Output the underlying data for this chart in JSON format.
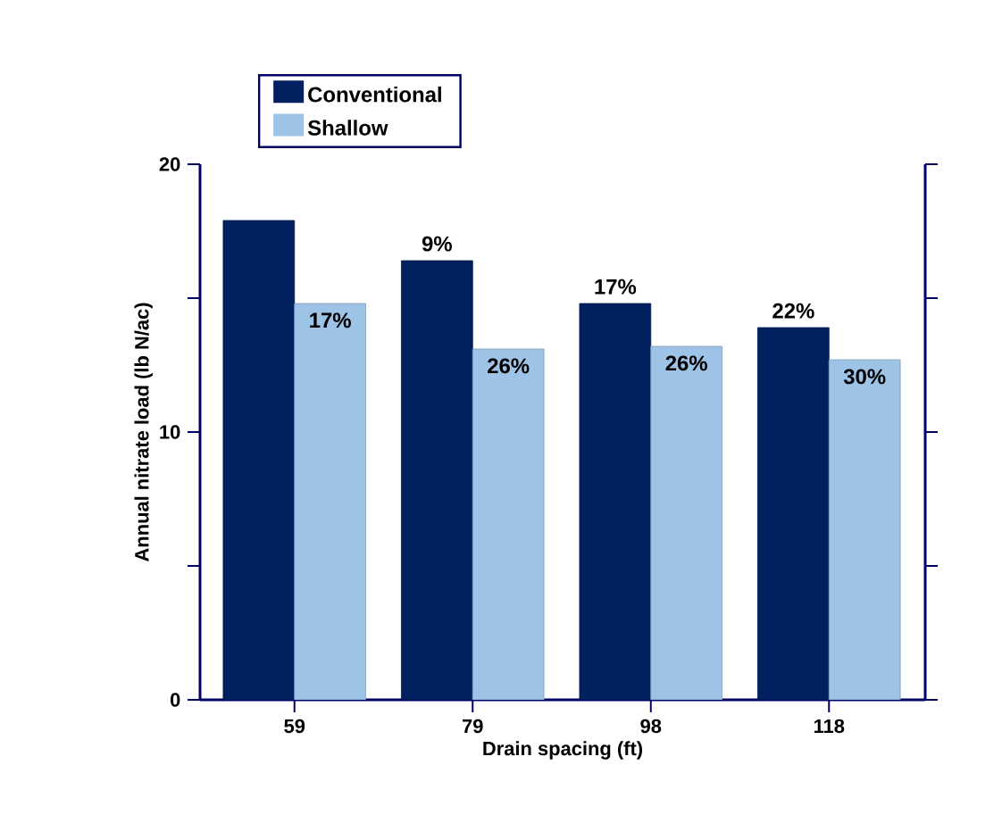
{
  "chart_data": {
    "type": "bar",
    "xlabel": "Drain spacing (ft)",
    "ylabel": "Annual nitrate load (lb N/ac)",
    "categories": [
      "59",
      "79",
      "98",
      "118"
    ],
    "series": [
      {
        "name": "Conventional",
        "color": "#002060",
        "values": [
          17.9,
          16.4,
          14.8,
          13.9
        ]
      },
      {
        "name": "Shallow",
        "color": "#9dc3e6",
        "values": [
          14.8,
          13.1,
          13.2,
          12.7
        ]
      }
    ],
    "annotations": [
      {
        "text": "9%",
        "x": "79",
        "y": 16.4
      },
      {
        "text": "17%",
        "x": "98",
        "y": 14.8
      },
      {
        "text": "22%",
        "x": "118",
        "y": 13.9
      },
      {
        "text": "17%",
        "x": "59",
        "y": 14.8
      },
      {
        "text": "26%",
        "x": "79",
        "y": 13.1
      },
      {
        "text": "26%",
        "x": "98",
        "y": 13.2
      },
      {
        "text": "30%",
        "x": "118",
        "y": 12.7
      }
    ],
    "ylim": [
      0,
      20
    ],
    "yticks": [
      0,
      {
        "value": 5,
        "label": null
      },
      10,
      {
        "value": 15,
        "label": null
      },
      20
    ],
    "grid": false,
    "legend": "top left"
  }
}
